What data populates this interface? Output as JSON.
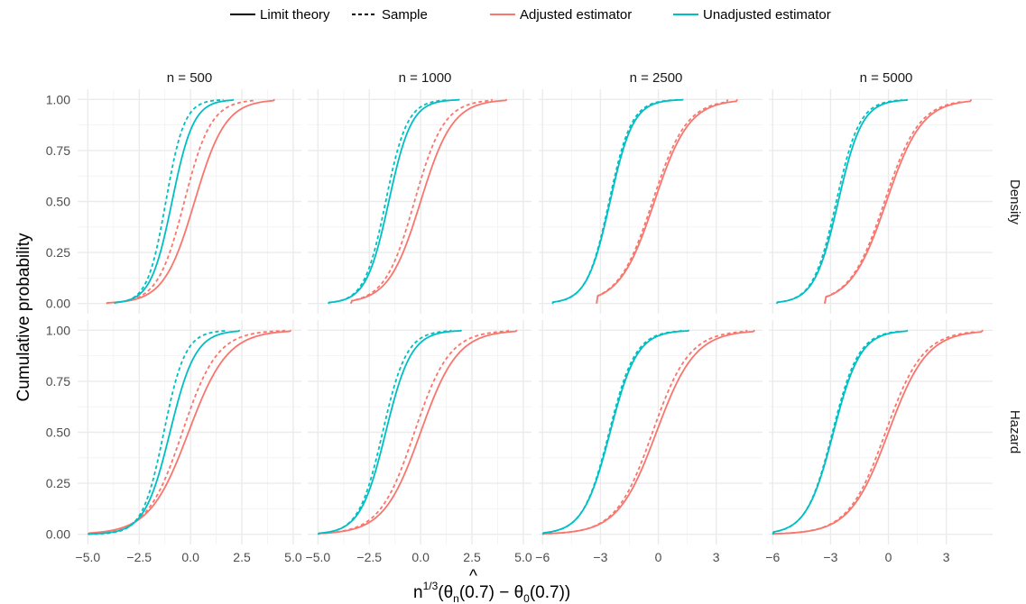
{
  "chart_data": {
    "type": "line",
    "ylabel": "Cumulative probability",
    "xlabel": "n^{1/3}(θ̂_n(0.7) − θ_0(0.7))",
    "legend": {
      "position": "top",
      "linetype": [
        {
          "label": "Limit theory",
          "dash": "solid"
        },
        {
          "label": "Sample",
          "dash": "dashed"
        }
      ],
      "colour": [
        {
          "label": "Adjusted estimator",
          "color": "#F8766D"
        },
        {
          "label": "Unadjusted estimator",
          "color": "#00BFC4"
        }
      ]
    },
    "columns": [
      "n = 500",
      "n = 1000",
      "n = 2500",
      "n = 5000"
    ],
    "rows": [
      "Density",
      "Hazard"
    ],
    "y_ticks": [
      0,
      0.25,
      0.5,
      0.75,
      1
    ],
    "y_tick_labels": [
      "0.00",
      "0.25",
      "0.50",
      "0.75",
      "1.00"
    ],
    "xlim": [
      [
        -5.5,
        5.4
      ],
      [
        -5.5,
        5.4
      ],
      [
        -6.2,
        5.4
      ],
      [
        -6.2,
        5.4
      ]
    ],
    "x_ticks": [
      [
        -5,
        -2.5,
        0,
        2.5,
        5
      ],
      [
        -5,
        -2.5,
        0,
        2.5,
        5
      ],
      [
        -6,
        -3,
        0,
        3
      ],
      [
        -6,
        -3,
        0,
        3
      ]
    ],
    "x_tick_labels": [
      [
        "−5.0",
        "−2.5",
        "0.0",
        "2.5",
        "5.0"
      ],
      [
        "−5.0",
        "−2.5",
        "0.0",
        "2.5",
        "5.0"
      ],
      [
        "−6",
        "−3",
        "0",
        "3"
      ],
      [
        "−6",
        "−3",
        "0",
        "3"
      ]
    ],
    "grid": true,
    "panels": [
      {
        "row": "Density",
        "col": "n = 500",
        "series": [
          {
            "estimator": "Adjusted estimator",
            "type": "Limit theory",
            "center": 0.2,
            "scale": 0.75,
            "range": [
              -4.1,
              4.1
            ]
          },
          {
            "estimator": "Adjusted estimator",
            "type": "Sample",
            "center": -0.3,
            "scale": 0.65,
            "range": [
              -4.1,
              3.1
            ]
          },
          {
            "estimator": "Unadjusted estimator",
            "type": "Limit theory",
            "center": -0.9,
            "scale": 0.52,
            "range": [
              -3.7,
              2.1
            ]
          },
          {
            "estimator": "Unadjusted estimator",
            "type": "Sample",
            "center": -1.2,
            "scale": 0.45,
            "range": [
              -3.7,
              1.6
            ]
          }
        ]
      },
      {
        "row": "Density",
        "col": "n = 1000",
        "series": [
          {
            "estimator": "Adjusted estimator",
            "type": "Limit theory",
            "center": 0.0,
            "scale": 0.78,
            "range": [
              -3.4,
              4.2
            ]
          },
          {
            "estimator": "Adjusted estimator",
            "type": "Sample",
            "center": -0.3,
            "scale": 0.72,
            "range": [
              -3.4,
              3.5
            ]
          },
          {
            "estimator": "Unadjusted estimator",
            "type": "Limit theory",
            "center": -1.55,
            "scale": 0.55,
            "range": [
              -4.5,
              1.9
            ]
          },
          {
            "estimator": "Unadjusted estimator",
            "type": "Sample",
            "center": -1.7,
            "scale": 0.52,
            "range": [
              -4.5,
              1.3
            ]
          }
        ]
      },
      {
        "row": "Density",
        "col": "n = 2500",
        "series": [
          {
            "estimator": "Adjusted estimator",
            "type": "Limit theory",
            "center": -0.2,
            "scale": 0.9,
            "range": [
              -3.2,
              4.1
            ]
          },
          {
            "estimator": "Adjusted estimator",
            "type": "Sample",
            "center": -0.3,
            "scale": 0.88,
            "range": [
              -3.2,
              3.6
            ]
          },
          {
            "estimator": "Unadjusted estimator",
            "type": "Limit theory",
            "center": -2.5,
            "scale": 0.6,
            "range": [
              -5.5,
              1.3
            ]
          },
          {
            "estimator": "Unadjusted estimator",
            "type": "Sample",
            "center": -2.55,
            "scale": 0.58,
            "range": [
              -5.5,
              1.0
            ]
          }
        ]
      },
      {
        "row": "Density",
        "col": "n = 5000",
        "series": [
          {
            "estimator": "Adjusted estimator",
            "type": "Limit theory",
            "center": -0.1,
            "scale": 0.92,
            "range": [
              -3.3,
              4.3
            ]
          },
          {
            "estimator": "Adjusted estimator",
            "type": "Sample",
            "center": -0.2,
            "scale": 0.9,
            "range": [
              -3.3,
              3.8
            ]
          },
          {
            "estimator": "Unadjusted estimator",
            "type": "Limit theory",
            "center": -2.6,
            "scale": 0.62,
            "range": [
              -5.8,
              1.0
            ]
          },
          {
            "estimator": "Unadjusted estimator",
            "type": "Sample",
            "center": -2.7,
            "scale": 0.6,
            "range": [
              -5.8,
              0.7
            ]
          }
        ]
      },
      {
        "row": "Hazard",
        "col": "n = 500",
        "series": [
          {
            "estimator": "Adjusted estimator",
            "type": "Limit theory",
            "center": -0.1,
            "scale": 0.95,
            "range": [
              -5.0,
              4.9
            ]
          },
          {
            "estimator": "Adjusted estimator",
            "type": "Sample",
            "center": -0.4,
            "scale": 0.85,
            "range": [
              -5.0,
              4.6
            ]
          },
          {
            "estimator": "Unadjusted estimator",
            "type": "Limit theory",
            "center": -1.0,
            "scale": 0.62,
            "range": [
              -5.0,
              2.4
            ]
          },
          {
            "estimator": "Unadjusted estimator",
            "type": "Sample",
            "center": -1.3,
            "scale": 0.52,
            "range": [
              -5.0,
              1.7
            ]
          }
        ]
      },
      {
        "row": "Hazard",
        "col": "n = 1000",
        "series": [
          {
            "estimator": "Adjusted estimator",
            "type": "Limit theory",
            "center": 0.0,
            "scale": 0.9,
            "range": [
              -5.0,
              4.7
            ]
          },
          {
            "estimator": "Adjusted estimator",
            "type": "Sample",
            "center": -0.3,
            "scale": 0.85,
            "range": [
              -5.0,
              4.3
            ]
          },
          {
            "estimator": "Unadjusted estimator",
            "type": "Limit theory",
            "center": -1.7,
            "scale": 0.62,
            "range": [
              -5.0,
              2.0
            ]
          },
          {
            "estimator": "Unadjusted estimator",
            "type": "Sample",
            "center": -1.85,
            "scale": 0.58,
            "range": [
              -5.0,
              1.5
            ]
          }
        ]
      },
      {
        "row": "Hazard",
        "col": "n = 2500",
        "series": [
          {
            "estimator": "Adjusted estimator",
            "type": "Limit theory",
            "center": -0.1,
            "scale": 1.0,
            "range": [
              -6.0,
              5.0
            ]
          },
          {
            "estimator": "Adjusted estimator",
            "type": "Sample",
            "center": -0.3,
            "scale": 0.95,
            "range": [
              -6.0,
              4.6
            ]
          },
          {
            "estimator": "Unadjusted estimator",
            "type": "Limit theory",
            "center": -2.5,
            "scale": 0.7,
            "range": [
              -6.0,
              1.6
            ]
          },
          {
            "estimator": "Unadjusted estimator",
            "type": "Sample",
            "center": -2.55,
            "scale": 0.68,
            "range": [
              -6.0,
              1.2
            ]
          }
        ]
      },
      {
        "row": "Hazard",
        "col": "n = 5000",
        "series": [
          {
            "estimator": "Adjusted estimator",
            "type": "Limit theory",
            "center": 0.0,
            "scale": 1.0,
            "range": [
              -6.0,
              4.9
            ]
          },
          {
            "estimator": "Adjusted estimator",
            "type": "Sample",
            "center": -0.15,
            "scale": 0.97,
            "range": [
              -6.0,
              4.5
            ]
          },
          {
            "estimator": "Unadjusted estimator",
            "type": "Limit theory",
            "center": -2.85,
            "scale": 0.7,
            "range": [
              -6.0,
              1.0
            ]
          },
          {
            "estimator": "Unadjusted estimator",
            "type": "Sample",
            "center": -2.9,
            "scale": 0.68,
            "range": [
              -6.0,
              0.6
            ]
          }
        ]
      }
    ]
  }
}
